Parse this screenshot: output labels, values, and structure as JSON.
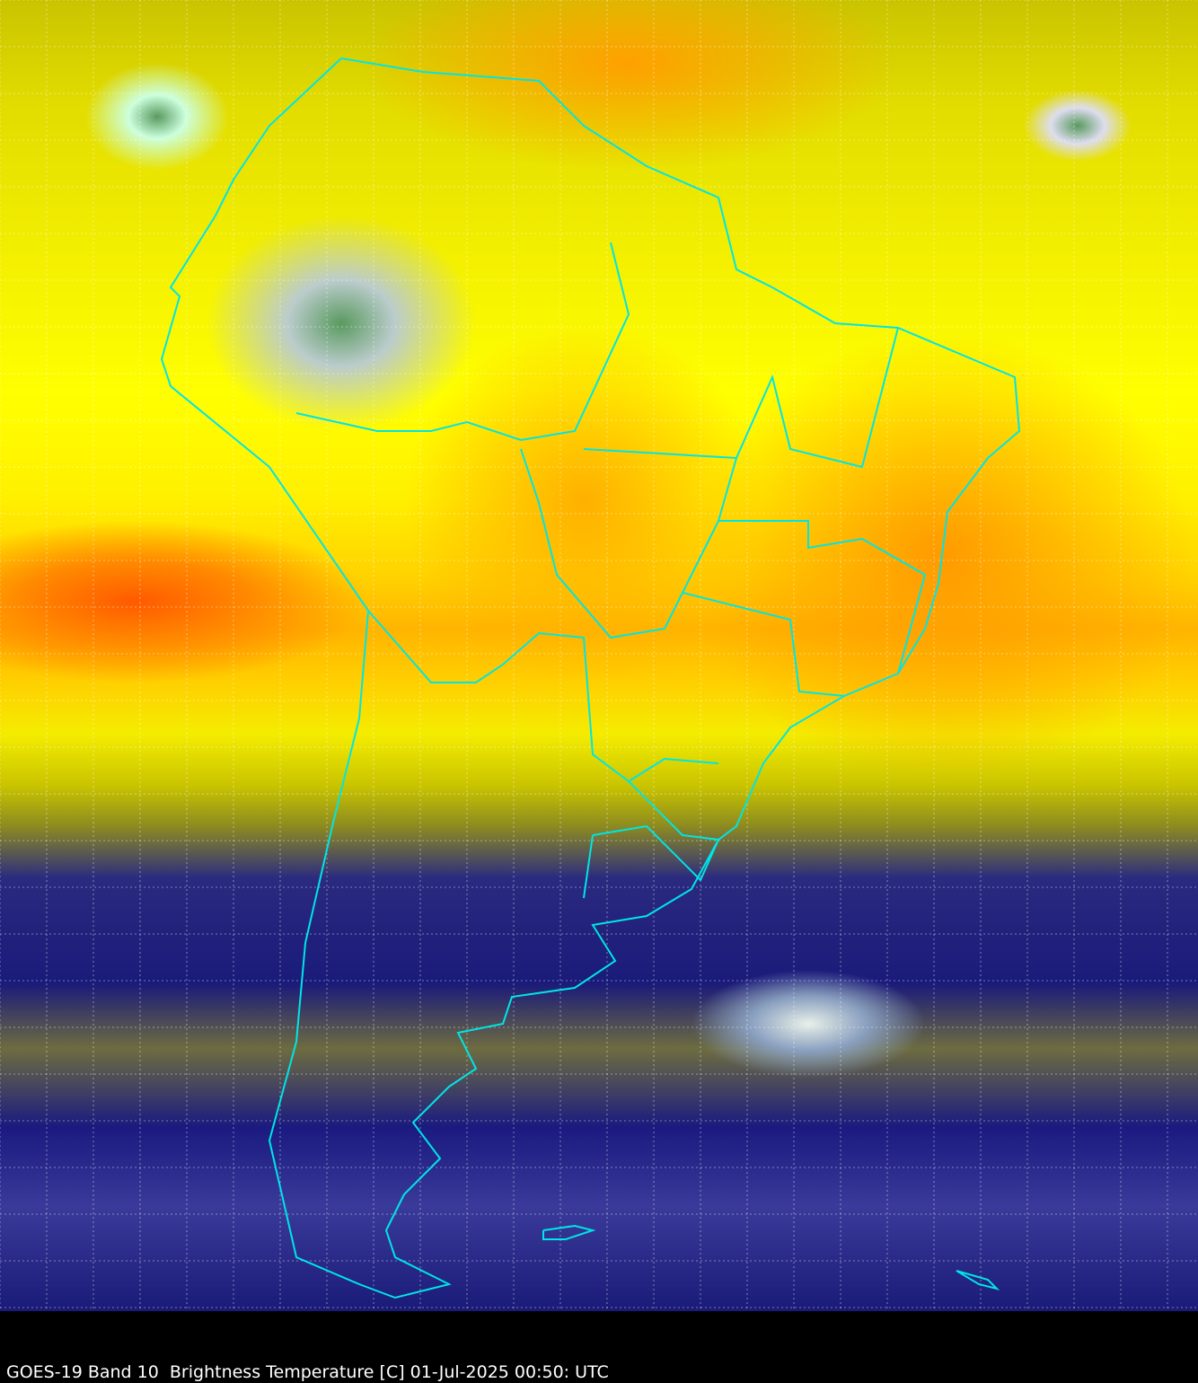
{
  "caption": "GOES-19 Band 10  Brightness Temperature [C] 01-Jul-2025 00:50: UTC",
  "colors": {
    "border_lines": "#00e5e5",
    "grid_lines": "#ffffff",
    "warm_dry": "#ff6a00",
    "moderate": "#ffff00",
    "cold_cloud": "#1a1a7a",
    "coldest": "#5a9a60"
  }
}
